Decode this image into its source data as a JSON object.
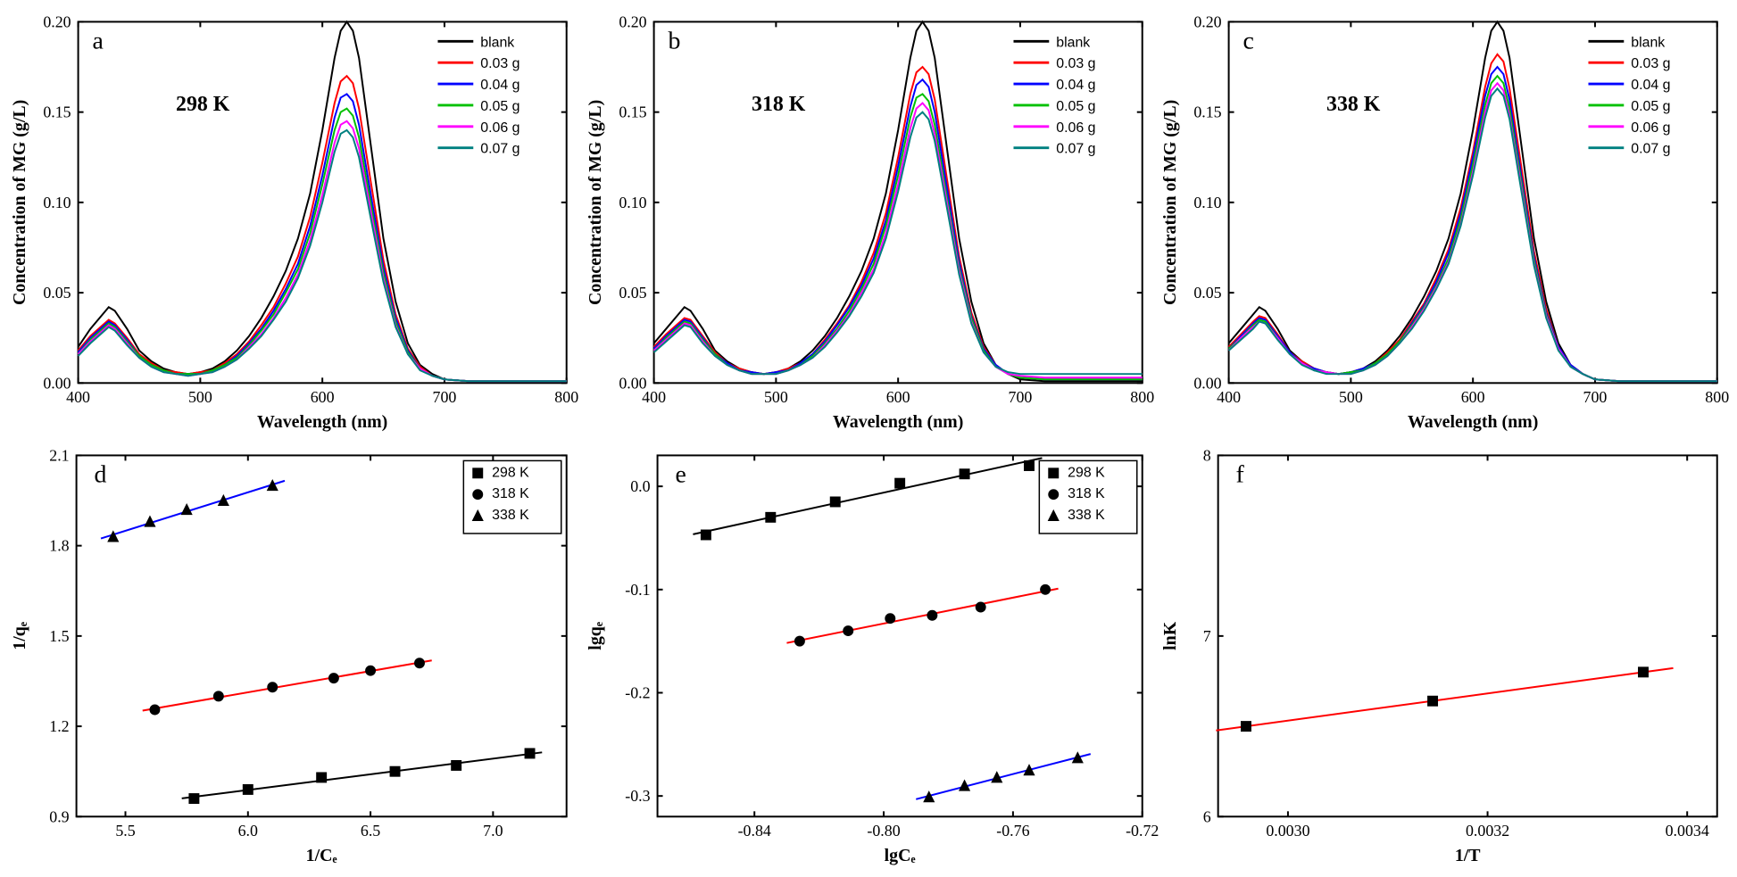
{
  "spectral": {
    "xlabel": "Wavelength (nm)",
    "ylabel": "Concentration of MG (g/L)",
    "xlim": [
      400,
      800
    ],
    "ylim": [
      0,
      0.2
    ],
    "xticks": [
      400,
      500,
      600,
      700,
      800
    ],
    "yticks": [
      0.0,
      0.05,
      0.1,
      0.15,
      0.2
    ],
    "axis_label_fontsize": 20,
    "tick_fontsize": 18,
    "panel_tag_fontsize": 28,
    "anno_fontsize": 24,
    "line_width": 2,
    "legend_fontsize": 16,
    "legend_items": [
      {
        "label": "blank",
        "color": "#000000"
      },
      {
        "label": "0.03 g",
        "color": "#ff0000"
      },
      {
        "label": "0.04 g",
        "color": "#0000ff"
      },
      {
        "label": "0.05 g",
        "color": "#00c000"
      },
      {
        "label": "0.06 g",
        "color": "#ff00ff"
      },
      {
        "label": "0.07 g",
        "color": "#008080"
      }
    ],
    "wavelengths": [
      400,
      410,
      420,
      425,
      430,
      440,
      450,
      460,
      470,
      480,
      490,
      500,
      510,
      520,
      530,
      540,
      550,
      560,
      570,
      580,
      590,
      600,
      610,
      615,
      620,
      625,
      630,
      640,
      650,
      660,
      670,
      680,
      690,
      700,
      720,
      750,
      800
    ],
    "panels": {
      "a": {
        "tag": "a",
        "anno": "298 K",
        "series": {
          "blank": [
            0.02,
            0.03,
            0.038,
            0.042,
            0.04,
            0.03,
            0.018,
            0.012,
            0.008,
            0.006,
            0.005,
            0.006,
            0.008,
            0.012,
            0.018,
            0.026,
            0.036,
            0.048,
            0.062,
            0.08,
            0.105,
            0.14,
            0.18,
            0.195,
            0.2,
            0.195,
            0.18,
            0.13,
            0.08,
            0.045,
            0.022,
            0.01,
            0.005,
            0.002,
            0.001,
            0.001,
            0.001
          ],
          "0.03 g": [
            0.018,
            0.026,
            0.032,
            0.035,
            0.033,
            0.025,
            0.016,
            0.011,
            0.007,
            0.006,
            0.005,
            0.006,
            0.007,
            0.011,
            0.016,
            0.023,
            0.032,
            0.042,
            0.055,
            0.07,
            0.092,
            0.122,
            0.155,
            0.167,
            0.17,
            0.166,
            0.152,
            0.11,
            0.068,
            0.038,
            0.019,
            0.009,
            0.004,
            0.002,
            0.001,
            0.001,
            0.001
          ],
          "0.04 g": [
            0.017,
            0.025,
            0.031,
            0.034,
            0.032,
            0.024,
            0.015,
            0.01,
            0.007,
            0.005,
            0.005,
            0.005,
            0.007,
            0.01,
            0.015,
            0.022,
            0.03,
            0.04,
            0.052,
            0.066,
            0.087,
            0.115,
            0.147,
            0.158,
            0.16,
            0.156,
            0.143,
            0.103,
            0.064,
            0.036,
            0.018,
            0.008,
            0.004,
            0.002,
            0.001,
            0.001,
            0.001
          ],
          "0.05 g": [
            0.016,
            0.024,
            0.03,
            0.033,
            0.031,
            0.023,
            0.015,
            0.01,
            0.007,
            0.005,
            0.005,
            0.005,
            0.007,
            0.01,
            0.014,
            0.021,
            0.029,
            0.038,
            0.05,
            0.063,
            0.083,
            0.11,
            0.14,
            0.15,
            0.152,
            0.148,
            0.136,
            0.098,
            0.061,
            0.034,
            0.017,
            0.008,
            0.004,
            0.002,
            0.001,
            0.001,
            0.001
          ],
          "0.06 g": [
            0.016,
            0.023,
            0.029,
            0.032,
            0.03,
            0.022,
            0.014,
            0.009,
            0.006,
            0.005,
            0.004,
            0.005,
            0.006,
            0.009,
            0.013,
            0.02,
            0.027,
            0.036,
            0.047,
            0.06,
            0.079,
            0.104,
            0.133,
            0.143,
            0.145,
            0.141,
            0.13,
            0.094,
            0.058,
            0.032,
            0.016,
            0.008,
            0.004,
            0.002,
            0.001,
            0.001,
            0.001
          ],
          "0.07 g": [
            0.015,
            0.022,
            0.028,
            0.031,
            0.029,
            0.021,
            0.014,
            0.009,
            0.006,
            0.005,
            0.004,
            0.005,
            0.006,
            0.009,
            0.013,
            0.019,
            0.026,
            0.035,
            0.045,
            0.058,
            0.076,
            0.1,
            0.128,
            0.138,
            0.14,
            0.136,
            0.125,
            0.09,
            0.056,
            0.031,
            0.016,
            0.007,
            0.004,
            0.002,
            0.001,
            0.001,
            0.001
          ]
        }
      },
      "b": {
        "tag": "b",
        "anno": "318 K",
        "series": {
          "blank": [
            0.022,
            0.03,
            0.038,
            0.042,
            0.04,
            0.03,
            0.018,
            0.012,
            0.008,
            0.006,
            0.005,
            0.006,
            0.008,
            0.012,
            0.018,
            0.026,
            0.036,
            0.048,
            0.062,
            0.08,
            0.105,
            0.14,
            0.18,
            0.195,
            0.2,
            0.195,
            0.18,
            0.13,
            0.08,
            0.045,
            0.022,
            0.01,
            0.005,
            0.002,
            0.001,
            0.001,
            0.001
          ],
          "0.03 g": [
            0.02,
            0.027,
            0.033,
            0.036,
            0.035,
            0.026,
            0.017,
            0.011,
            0.008,
            0.006,
            0.005,
            0.006,
            0.008,
            0.011,
            0.016,
            0.024,
            0.033,
            0.043,
            0.056,
            0.072,
            0.094,
            0.125,
            0.16,
            0.172,
            0.175,
            0.171,
            0.157,
            0.113,
            0.07,
            0.039,
            0.02,
            0.01,
            0.005,
            0.003,
            0.002,
            0.002,
            0.002
          ],
          "0.04 g": [
            0.019,
            0.026,
            0.032,
            0.035,
            0.034,
            0.025,
            0.016,
            0.011,
            0.007,
            0.006,
            0.005,
            0.006,
            0.007,
            0.011,
            0.016,
            0.023,
            0.032,
            0.042,
            0.054,
            0.069,
            0.09,
            0.12,
            0.153,
            0.165,
            0.168,
            0.164,
            0.15,
            0.108,
            0.067,
            0.037,
            0.019,
            0.01,
            0.005,
            0.003,
            0.002,
            0.002,
            0.002
          ],
          "0.05 g": [
            0.018,
            0.025,
            0.031,
            0.034,
            0.033,
            0.024,
            0.016,
            0.01,
            0.007,
            0.005,
            0.005,
            0.005,
            0.007,
            0.01,
            0.015,
            0.022,
            0.03,
            0.04,
            0.052,
            0.066,
            0.087,
            0.115,
            0.147,
            0.158,
            0.16,
            0.156,
            0.143,
            0.103,
            0.064,
            0.036,
            0.018,
            0.009,
            0.005,
            0.003,
            0.002,
            0.002,
            0.002
          ],
          "0.06 g": [
            0.018,
            0.024,
            0.03,
            0.033,
            0.032,
            0.023,
            0.015,
            0.01,
            0.007,
            0.005,
            0.005,
            0.005,
            0.007,
            0.01,
            0.014,
            0.021,
            0.029,
            0.038,
            0.05,
            0.063,
            0.083,
            0.11,
            0.141,
            0.152,
            0.155,
            0.151,
            0.138,
            0.1,
            0.062,
            0.034,
            0.017,
            0.009,
            0.005,
            0.004,
            0.003,
            0.003,
            0.003
          ],
          "0.07 g": [
            0.017,
            0.023,
            0.029,
            0.032,
            0.031,
            0.022,
            0.015,
            0.01,
            0.007,
            0.005,
            0.005,
            0.005,
            0.007,
            0.01,
            0.014,
            0.02,
            0.028,
            0.037,
            0.048,
            0.061,
            0.08,
            0.106,
            0.136,
            0.147,
            0.15,
            0.146,
            0.134,
            0.097,
            0.06,
            0.033,
            0.017,
            0.009,
            0.006,
            0.005,
            0.005,
            0.005,
            0.005
          ]
        }
      },
      "c": {
        "tag": "c",
        "anno": "338 K",
        "series": {
          "blank": [
            0.022,
            0.03,
            0.038,
            0.042,
            0.04,
            0.03,
            0.018,
            0.012,
            0.008,
            0.006,
            0.005,
            0.006,
            0.008,
            0.012,
            0.018,
            0.026,
            0.036,
            0.048,
            0.062,
            0.08,
            0.105,
            0.14,
            0.18,
            0.195,
            0.2,
            0.195,
            0.18,
            0.13,
            0.08,
            0.045,
            0.022,
            0.01,
            0.005,
            0.002,
            0.001,
            0.001,
            0.001
          ],
          "0.03 g": [
            0.02,
            0.027,
            0.034,
            0.037,
            0.036,
            0.027,
            0.017,
            0.012,
            0.008,
            0.006,
            0.005,
            0.006,
            0.008,
            0.011,
            0.017,
            0.024,
            0.034,
            0.044,
            0.058,
            0.074,
            0.097,
            0.128,
            0.164,
            0.177,
            0.182,
            0.178,
            0.163,
            0.118,
            0.073,
            0.041,
            0.02,
            0.01,
            0.005,
            0.002,
            0.001,
            0.001,
            0.001
          ],
          "0.04 g": [
            0.019,
            0.026,
            0.033,
            0.036,
            0.035,
            0.026,
            0.017,
            0.011,
            0.008,
            0.006,
            0.005,
            0.006,
            0.008,
            0.011,
            0.016,
            0.023,
            0.033,
            0.043,
            0.056,
            0.072,
            0.094,
            0.125,
            0.159,
            0.171,
            0.175,
            0.171,
            0.157,
            0.113,
            0.07,
            0.039,
            0.02,
            0.01,
            0.005,
            0.002,
            0.001,
            0.001,
            0.001
          ],
          "0.05 g": [
            0.019,
            0.025,
            0.032,
            0.035,
            0.034,
            0.025,
            0.016,
            0.011,
            0.007,
            0.006,
            0.005,
            0.006,
            0.007,
            0.011,
            0.016,
            0.023,
            0.032,
            0.042,
            0.054,
            0.069,
            0.091,
            0.121,
            0.154,
            0.166,
            0.17,
            0.166,
            0.152,
            0.11,
            0.068,
            0.038,
            0.019,
            0.009,
            0.005,
            0.002,
            0.001,
            0.001,
            0.001
          ],
          "0.06 g": [
            0.018,
            0.025,
            0.031,
            0.034,
            0.033,
            0.025,
            0.016,
            0.011,
            0.007,
            0.006,
            0.005,
            0.005,
            0.007,
            0.01,
            0.015,
            0.022,
            0.031,
            0.041,
            0.053,
            0.067,
            0.088,
            0.117,
            0.15,
            0.162,
            0.166,
            0.162,
            0.148,
            0.107,
            0.066,
            0.037,
            0.019,
            0.009,
            0.005,
            0.002,
            0.001,
            0.001,
            0.001
          ],
          "0.07 g": [
            0.018,
            0.024,
            0.03,
            0.034,
            0.033,
            0.024,
            0.016,
            0.01,
            0.007,
            0.005,
            0.005,
            0.005,
            0.007,
            0.01,
            0.015,
            0.022,
            0.03,
            0.04,
            0.052,
            0.066,
            0.087,
            0.115,
            0.147,
            0.159,
            0.163,
            0.159,
            0.146,
            0.105,
            0.065,
            0.036,
            0.018,
            0.009,
            0.005,
            0.002,
            0.001,
            0.001,
            0.001
          ]
        }
      }
    }
  },
  "panel_d": {
    "tag": "d",
    "xlabel": "1/Cₑ",
    "ylabel": "1/qₑ",
    "xlim": [
      5.3,
      7.3
    ],
    "ylim": [
      0.9,
      2.1
    ],
    "xticks": [
      5.5,
      6.0,
      6.5,
      7.0
    ],
    "yticks": [
      0.9,
      1.2,
      1.5,
      1.8,
      2.1
    ],
    "axis_label_fontsize": 20,
    "tick_fontsize": 18,
    "panel_tag_fontsize": 28,
    "marker_size": 6,
    "line_width": 2,
    "legend_fontsize": 16,
    "legend_items": [
      {
        "label": "298 K",
        "marker": "square"
      },
      {
        "label": "318 K",
        "marker": "circle"
      },
      {
        "label": "338 K",
        "marker": "triangle"
      }
    ],
    "series": [
      {
        "marker": "square",
        "line_color": "#000000",
        "marker_color": "#000000",
        "x": [
          5.78,
          6.0,
          6.3,
          6.6,
          6.85,
          7.15
        ],
        "y": [
          0.96,
          0.99,
          1.03,
          1.05,
          1.07,
          1.11
        ]
      },
      {
        "marker": "circle",
        "line_color": "#ff0000",
        "marker_color": "#000000",
        "x": [
          5.62,
          5.88,
          6.1,
          6.35,
          6.5,
          6.7
        ],
        "y": [
          1.255,
          1.3,
          1.33,
          1.36,
          1.385,
          1.41
        ]
      },
      {
        "marker": "triangle",
        "line_color": "#0000ff",
        "marker_color": "#000000",
        "x": [
          5.45,
          5.6,
          5.75,
          5.9,
          6.1
        ],
        "y": [
          1.83,
          1.88,
          1.92,
          1.95,
          2.0
        ]
      }
    ]
  },
  "panel_e": {
    "tag": "e",
    "xlabel": "lgCₑ",
    "ylabel": "lgqₑ",
    "xlim": [
      -0.87,
      -0.72
    ],
    "ylim": [
      -0.32,
      0.03
    ],
    "xticks": [
      -0.84,
      -0.8,
      -0.76,
      -0.72
    ],
    "yticks": [
      -0.3,
      -0.2,
      -0.1,
      0.0
    ],
    "axis_label_fontsize": 20,
    "tick_fontsize": 18,
    "panel_tag_fontsize": 28,
    "marker_size": 6,
    "line_width": 2,
    "legend_fontsize": 16,
    "legend_items": [
      {
        "label": "298 K",
        "marker": "square"
      },
      {
        "label": "318 K",
        "marker": "circle"
      },
      {
        "label": "338 K",
        "marker": "triangle"
      }
    ],
    "series": [
      {
        "marker": "square",
        "line_color": "#000000",
        "marker_color": "#000000",
        "x": [
          -0.855,
          -0.835,
          -0.815,
          -0.795,
          -0.775,
          -0.755
        ],
        "y": [
          -0.047,
          -0.03,
          -0.015,
          0.003,
          0.012,
          0.02
        ]
      },
      {
        "marker": "circle",
        "line_color": "#ff0000",
        "marker_color": "#000000",
        "x": [
          -0.826,
          -0.811,
          -0.798,
          -0.785,
          -0.77,
          -0.75
        ],
        "y": [
          -0.15,
          -0.14,
          -0.128,
          -0.125,
          -0.117,
          -0.1
        ]
      },
      {
        "marker": "triangle",
        "line_color": "#0000ff",
        "marker_color": "#000000",
        "x": [
          -0.786,
          -0.775,
          -0.765,
          -0.755,
          -0.74
        ],
        "y": [
          -0.301,
          -0.29,
          -0.282,
          -0.275,
          -0.263
        ]
      }
    ]
  },
  "panel_f": {
    "tag": "f",
    "xlabel": "1/T",
    "ylabel": "lnK",
    "xlim": [
      0.00293,
      0.00343
    ],
    "ylim": [
      6.0,
      8.0
    ],
    "xticks": [
      0.003,
      0.0032,
      0.0034
    ],
    "yticks": [
      6,
      7,
      8
    ],
    "axis_label_fontsize": 20,
    "tick_fontsize": 18,
    "panel_tag_fontsize": 28,
    "marker_size": 6,
    "line_width": 2,
    "line_color": "#ff0000",
    "marker_color": "#000000",
    "x": [
      0.002958,
      0.003145,
      0.003356
    ],
    "y": [
      6.5,
      6.64,
      6.8
    ]
  }
}
